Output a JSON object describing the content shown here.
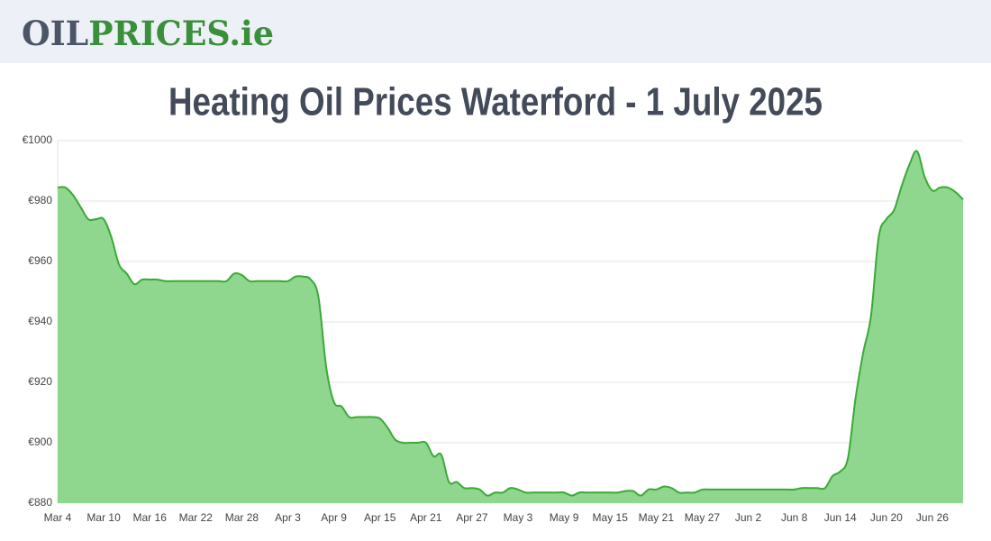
{
  "logo": {
    "dark": "OIL",
    "green": "PRICES.ie"
  },
  "chart_data": {
    "type": "area",
    "title": "Heating Oil Prices Waterford - 1 July 2025",
    "categories": [
      "Mar 4",
      null,
      null,
      null,
      null,
      null,
      "Mar 10",
      null,
      null,
      null,
      null,
      null,
      "Mar 16",
      null,
      null,
      null,
      null,
      null,
      "Mar 22",
      null,
      null,
      null,
      null,
      null,
      "Mar 28",
      null,
      null,
      null,
      null,
      null,
      "Apr 3",
      null,
      null,
      null,
      null,
      null,
      "Apr 9",
      null,
      null,
      null,
      null,
      null,
      "Apr 15",
      null,
      null,
      null,
      null,
      null,
      "Apr 21",
      null,
      null,
      null,
      null,
      null,
      "Apr 27",
      null,
      null,
      null,
      null,
      null,
      "May 3",
      null,
      null,
      null,
      null,
      null,
      "May 9",
      null,
      null,
      null,
      null,
      null,
      "May 15",
      null,
      null,
      null,
      null,
      null,
      "May 21",
      null,
      null,
      null,
      null,
      null,
      "May 27",
      null,
      null,
      null,
      null,
      null,
      "Jun 2",
      null,
      null,
      null,
      null,
      null,
      "Jun 8",
      null,
      null,
      null,
      null,
      null,
      "Jun 14",
      null,
      null,
      null,
      null,
      null,
      "Jun 20",
      null,
      null,
      null,
      null,
      null,
      "Jun 26",
      null,
      null,
      null,
      null
    ],
    "values": [
      984.5,
      984.5,
      982,
      978,
      974,
      974,
      974,
      968,
      959,
      956,
      952.5,
      954,
      954,
      954,
      953.5,
      953.5,
      953.5,
      953.5,
      953.5,
      953.5,
      953.5,
      953.5,
      953.5,
      956,
      955.5,
      953.5,
      953.5,
      953.5,
      953.5,
      953.5,
      953.5,
      955,
      955,
      954,
      948,
      925,
      913.5,
      912,
      908.5,
      908.5,
      908.5,
      908.5,
      908,
      905,
      901,
      900,
      900,
      900,
      900,
      895.5,
      896,
      887,
      887,
      885,
      885,
      884.5,
      882.5,
      883.5,
      883.5,
      885,
      884.5,
      883.5,
      883.5,
      883.5,
      883.5,
      883.5,
      883.5,
      882.5,
      883.5,
      883.5,
      883.5,
      883.5,
      883.5,
      883.5,
      884,
      884,
      882.5,
      884.5,
      884.5,
      885.5,
      885,
      883.5,
      883.5,
      883.5,
      884.5,
      884.5,
      884.5,
      884.5,
      884.5,
      884.5,
      884.5,
      884.5,
      884.5,
      884.5,
      884.5,
      884.5,
      884.5,
      885,
      885,
      885,
      885,
      889,
      890.5,
      895,
      915,
      930,
      942,
      968,
      974,
      977,
      985,
      992,
      996.5,
      988,
      983.5,
      984.5,
      984.5,
      983,
      980.5
    ],
    "color": "#3aaa35",
    "fill": "#8fd68f",
    "ylim": [
      880,
      1000
    ],
    "yticks": [
      {
        "value": 880,
        "label": "€880"
      },
      {
        "value": 900,
        "label": "€900"
      },
      {
        "value": 920,
        "label": "€920"
      },
      {
        "value": 940,
        "label": "€940"
      },
      {
        "value": 960,
        "label": "€960"
      },
      {
        "value": 980,
        "label": "€980"
      },
      {
        "value": 1000,
        "label": "€1000"
      }
    ],
    "grid": true
  }
}
